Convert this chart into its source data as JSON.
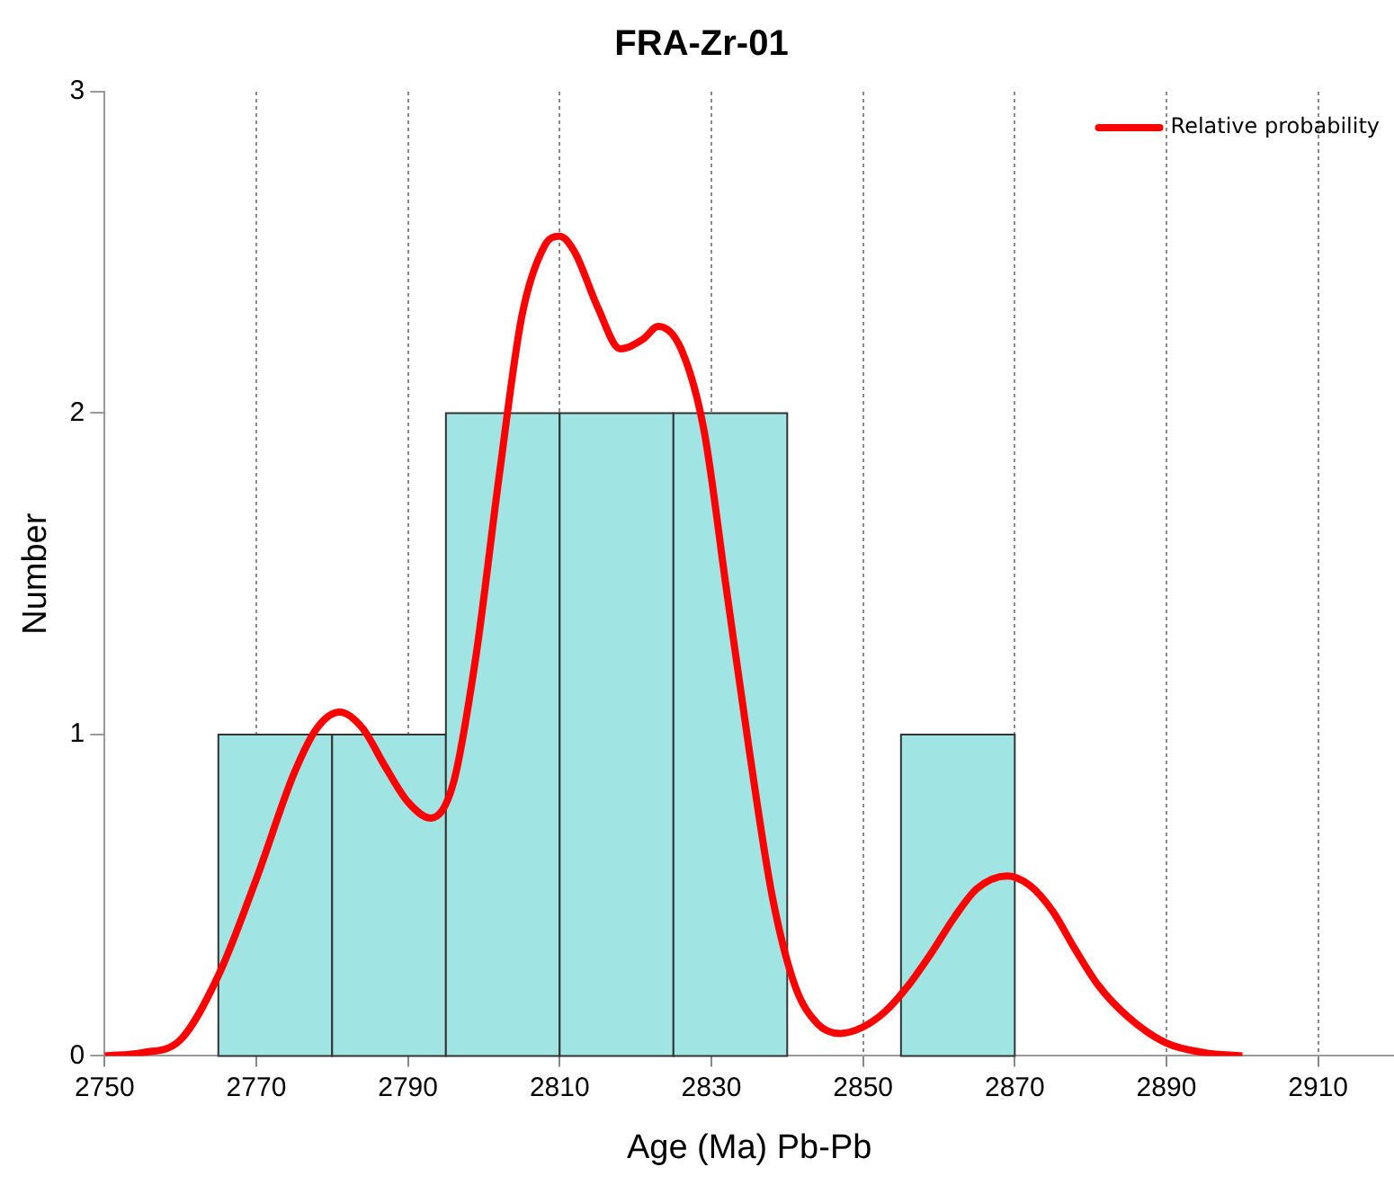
{
  "chart_data": {
    "type": "histogram",
    "title": "FRA-Zr-01",
    "xlabel": "Age (Ma) Pb-Pb",
    "ylabel": "Number",
    "bins": [
      2765,
      2780,
      2795,
      2810,
      2825,
      2840,
      2855,
      2870
    ],
    "values": [
      1,
      1,
      2,
      2,
      2,
      0,
      1
    ],
    "color": "#a0e4e4",
    "series": [
      {
        "name": "Relative probability",
        "type": "line",
        "color": "#ff0000",
        "x": [
          2750,
          2755,
          2760,
          2765,
          2770,
          2775,
          2778,
          2781,
          2784,
          2787,
          2790,
          2793,
          2796,
          2799,
          2802,
          2805,
          2808,
          2810,
          2812,
          2815,
          2818,
          2821,
          2823,
          2826,
          2829,
          2832,
          2835,
          2838,
          2841,
          2844,
          2847,
          2850,
          2853,
          2856,
          2859,
          2862,
          2865,
          2869,
          2872,
          2875,
          2878,
          2881,
          2885,
          2890,
          2895,
          2900
        ],
        "values": [
          0,
          0.01,
          0.05,
          0.25,
          0.55,
          0.88,
          1.02,
          1.07,
          1.02,
          0.9,
          0.79,
          0.74,
          0.85,
          1.25,
          1.8,
          2.3,
          2.52,
          2.55,
          2.5,
          2.33,
          2.2,
          2.23,
          2.27,
          2.2,
          1.95,
          1.45,
          0.95,
          0.5,
          0.22,
          0.1,
          0.07,
          0.09,
          0.14,
          0.22,
          0.32,
          0.43,
          0.52,
          0.56,
          0.53,
          0.45,
          0.33,
          0.22,
          0.12,
          0.04,
          0.01,
          0
        ]
      }
    ],
    "xlim": [
      2750,
      2920
    ],
    "xticks": [
      2750,
      2770,
      2790,
      2810,
      2830,
      2850,
      2870,
      2890,
      2910
    ],
    "ylim": [
      0,
      3
    ],
    "yticks": [
      0,
      1,
      2,
      3
    ],
    "grid": "x",
    "legend": "top right",
    "line_style": "solid",
    "marker": "none"
  }
}
